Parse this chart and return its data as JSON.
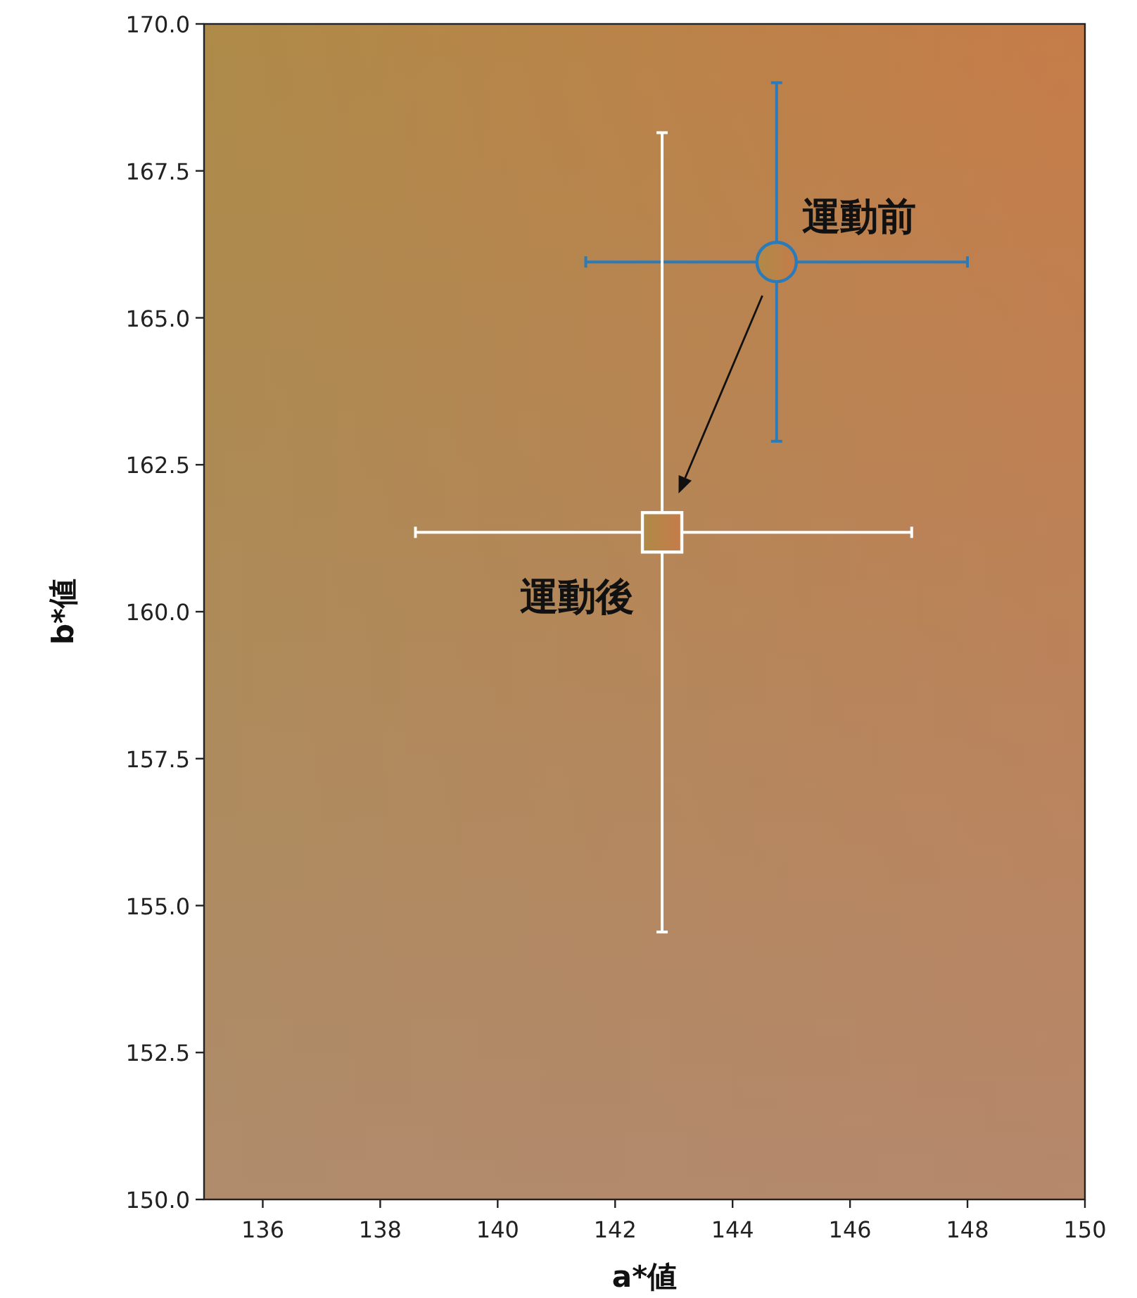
{
  "chart_data": {
    "type": "scatter",
    "xlabel": "a*値",
    "ylabel": "b*値",
    "xlim": [
      135,
      150
    ],
    "xticks": [
      136,
      138,
      140,
      142,
      144,
      146,
      148,
      150
    ],
    "ylim": [
      150,
      170
    ],
    "yticks": [
      {
        "value": 150,
        "label": "150.0"
      },
      152.5,
      {
        "value": 155,
        "label": "155.0"
      },
      157.5,
      {
        "value": 160,
        "label": "160.0"
      },
      162.5,
      {
        "value": 165,
        "label": "165.0"
      },
      167.5,
      {
        "value": 170,
        "label": "170.0"
      }
    ],
    "grid": false,
    "legend": false,
    "series": [
      {
        "name": "運動前",
        "color": "#2b7bba",
        "marker": "circle",
        "x": [
          144.75
        ],
        "values": [
          165.95
        ],
        "xerrors": [
          [
            141.5,
            148.0
          ]
        ],
        "errors": [
          [
            162.9,
            169.0
          ]
        ]
      },
      {
        "name": "運動後",
        "color": "#ffffff",
        "marker": "square",
        "x": [
          142.8
        ],
        "values": [
          161.35
        ],
        "xerrors": [
          [
            138.6,
            147.05
          ]
        ],
        "errors": [
          [
            154.55,
            168.15
          ]
        ]
      }
    ]
  }
}
